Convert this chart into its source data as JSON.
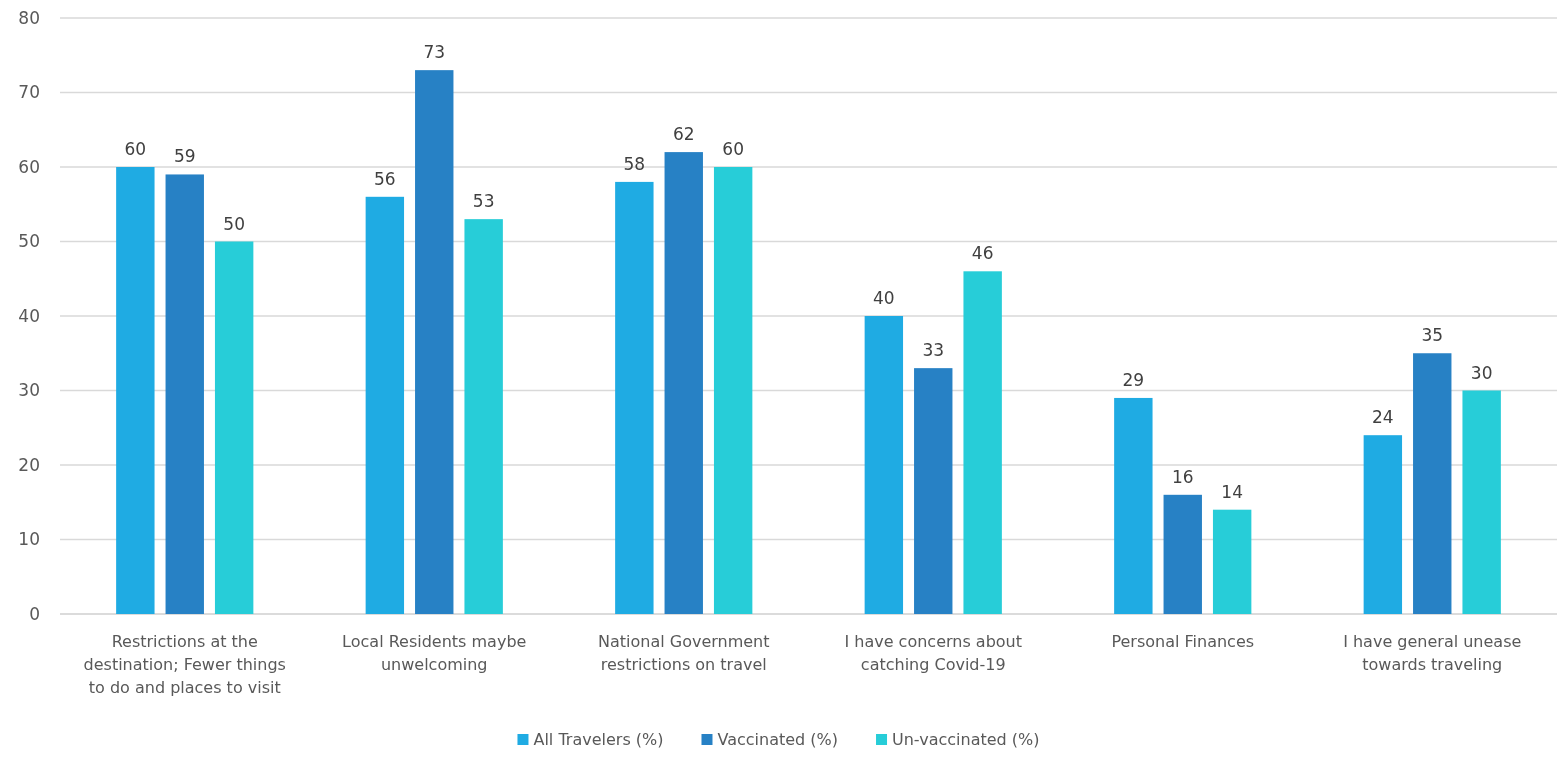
{
  "chart_data": {
    "type": "bar",
    "categories": [
      "Restrictions at the destination; Fewer things to do and places to visit",
      "Local Residents maybe unwelcoming",
      "National Government restrictions on travel",
      "I have concerns about catching Covid-19",
      "Personal Finances",
      "I have general unease towards traveling"
    ],
    "series": [
      {
        "name": "All Travelers (%)",
        "color": "#1fabe3",
        "values": [
          60,
          56,
          58,
          40,
          29,
          24
        ]
      },
      {
        "name": "Vaccinated (%)",
        "color": "#2781c5",
        "values": [
          59,
          73,
          62,
          33,
          16,
          35
        ]
      },
      {
        "name": "Un-vaccinated (%)",
        "color": "#27cdd8",
        "values": [
          50,
          53,
          60,
          46,
          14,
          30
        ]
      }
    ],
    "ylim": [
      0,
      80
    ],
    "yticks": [
      0,
      10,
      20,
      30,
      40,
      50,
      60,
      70,
      80
    ],
    "grid": "y",
    "data_labels": true,
    "legend": "bottom"
  }
}
